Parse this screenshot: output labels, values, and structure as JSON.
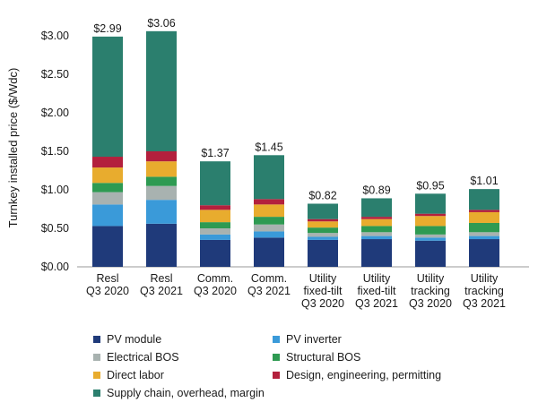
{
  "chart_data": {
    "type": "bar",
    "stacked": true,
    "ylabel": "Turnkey installed price ($/Wdc)",
    "ylim": [
      0,
      3.0
    ],
    "yticks": [
      "$0.00",
      "$0.50",
      "$1.00",
      "$1.50",
      "$2.00",
      "$2.50",
      "$3.00"
    ],
    "ytick_values": [
      0,
      0.5,
      1.0,
      1.5,
      2.0,
      2.5,
      3.0
    ],
    "categories": [
      [
        "Resl",
        "Q3 2020"
      ],
      [
        "Resl",
        "Q3 2021"
      ],
      [
        "Comm.",
        "Q3 2020"
      ],
      [
        "Comm.",
        "Q3 2021"
      ],
      [
        "Utility",
        "fixed-tilt",
        "Q3 2020"
      ],
      [
        "Utility",
        "fixed-tilt",
        "Q3 2021"
      ],
      [
        "Utility",
        "tracking",
        "Q3 2020"
      ],
      [
        "Utility",
        "tracking",
        "Q3 2021"
      ]
    ],
    "totals": [
      "$2.99",
      "$3.06",
      "$1.37",
      "$1.45",
      "$0.82",
      "$0.89",
      "$0.95",
      "$1.01"
    ],
    "total_values": [
      2.99,
      3.06,
      1.37,
      1.45,
      0.82,
      0.89,
      0.95,
      1.01
    ],
    "series": [
      {
        "name": "PV module",
        "color": "#1f3a7a",
        "values": [
          0.53,
          0.56,
          0.35,
          0.38,
          0.35,
          0.36,
          0.34,
          0.36
        ]
      },
      {
        "name": "PV inverter",
        "color": "#3a9ad9",
        "values": [
          0.28,
          0.31,
          0.07,
          0.08,
          0.04,
          0.04,
          0.04,
          0.04
        ]
      },
      {
        "name": "Electrical BOS",
        "color": "#a8b2b0",
        "values": [
          0.16,
          0.18,
          0.08,
          0.09,
          0.05,
          0.05,
          0.04,
          0.05
        ]
      },
      {
        "name": "Structural BOS",
        "color": "#2e9a52",
        "values": [
          0.12,
          0.12,
          0.08,
          0.1,
          0.07,
          0.08,
          0.11,
          0.12
        ]
      },
      {
        "name": "Direct labor",
        "color": "#e8ac2e",
        "values": [
          0.2,
          0.2,
          0.16,
          0.16,
          0.08,
          0.09,
          0.13,
          0.14
        ]
      },
      {
        "name": "Design, engineering, permitting",
        "color": "#b3203d",
        "values": [
          0.14,
          0.13,
          0.06,
          0.07,
          0.03,
          0.03,
          0.03,
          0.03
        ]
      },
      {
        "name": "Supply chain, overhead, margin",
        "color": "#2b7f6e",
        "values": [
          1.56,
          1.56,
          0.57,
          0.57,
          0.2,
          0.24,
          0.26,
          0.27
        ]
      }
    ],
    "legend_position": "bottom"
  }
}
